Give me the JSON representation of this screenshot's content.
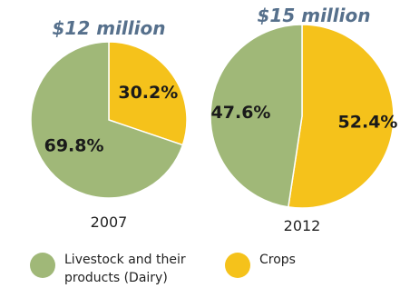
{
  "chart_data": [
    {
      "type": "pie",
      "title": "$12 million",
      "xlabel": "2007",
      "slices": [
        {
          "name": "Crops",
          "value": 30.2,
          "label": "30.2%"
        },
        {
          "name": "Livestock and their products (Dairy)",
          "value": 69.8,
          "label": "69.8%"
        }
      ]
    },
    {
      "type": "pie",
      "title": "$15 million",
      "xlabel": "2012",
      "slices": [
        {
          "name": "Crops",
          "value": 52.4,
          "label": "52.4%"
        },
        {
          "name": "Livestock and their products (Dairy)",
          "value": 47.6,
          "label": "47.6%"
        }
      ]
    }
  ],
  "legend": {
    "items": [
      {
        "label": "Livestock and their\nproducts (Dairy)",
        "color": "#a0b878"
      },
      {
        "label": "Crops",
        "color": "#f5c21b"
      }
    ]
  },
  "colors": {
    "Crops": "#f5c21b",
    "Livestock and their products (Dairy)": "#a0b878",
    "title": "#56708c"
  }
}
